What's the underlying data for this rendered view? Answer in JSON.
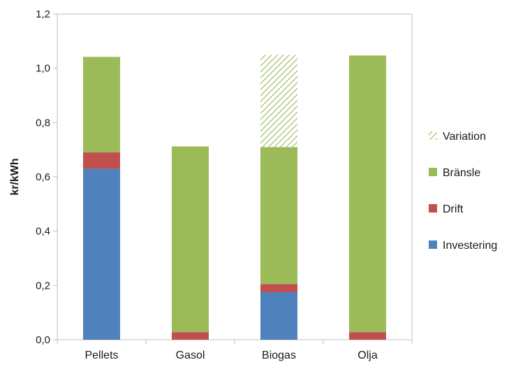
{
  "chart_data": {
    "type": "bar",
    "stacked": true,
    "categories": [
      "Pellets",
      "Gasol",
      "Biogas",
      "Olja"
    ],
    "series": [
      {
        "name": "Investering",
        "color": "#4F81BD",
        "values": [
          0.63,
          0.0,
          0.175,
          0.0
        ]
      },
      {
        "name": "Drift",
        "color": "#C0504D",
        "values": [
          0.06,
          0.028,
          0.03,
          0.028
        ]
      },
      {
        "name": "Bränsle",
        "color": "#9BBB59",
        "values": [
          0.352,
          0.684,
          0.505,
          1.019
        ]
      },
      {
        "name": "Variation",
        "color": "#9BBB59",
        "pattern": "hatched",
        "values": [
          0.0,
          0.0,
          0.34,
          0.0
        ]
      }
    ],
    "legend_order": [
      "Variation",
      "Bränsle",
      "Drift",
      "Investering"
    ],
    "ylabel": "kr/kWh",
    "ylim": [
      0,
      1.2
    ],
    "yticks": [
      "0,0",
      "0,2",
      "0,4",
      "0,6",
      "0,8",
      "1,0",
      "1,2"
    ],
    "grid": false,
    "legend_position": "right"
  }
}
